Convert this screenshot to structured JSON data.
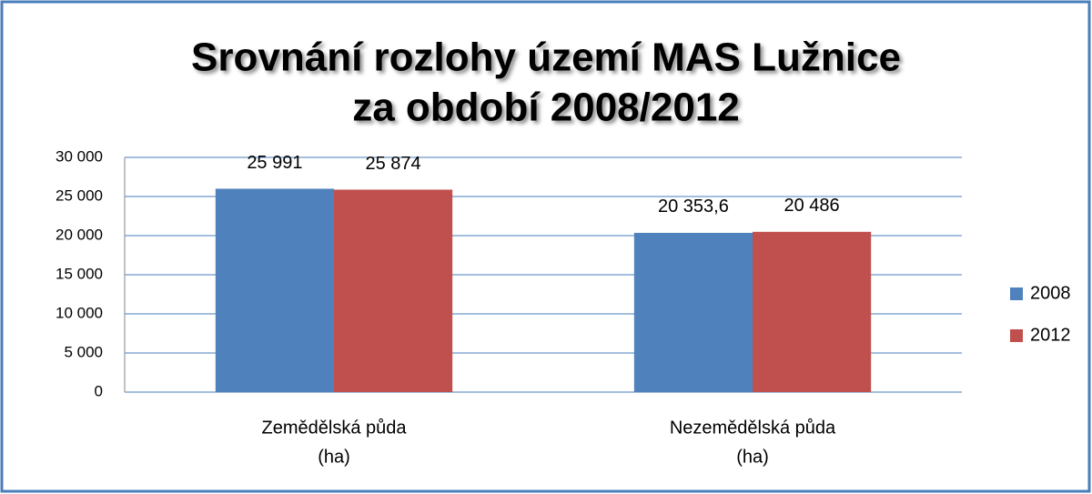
{
  "chart_data": {
    "type": "bar",
    "title": [
      "Srovnání rozlohy území MAS Lužnice",
      "za období 2008/2012"
    ],
    "categories": [
      [
        "Zemědělská půda",
        "(ha)"
      ],
      [
        "Nezemědělská půda",
        "(ha)"
      ]
    ],
    "series": [
      {
        "name": "2008",
        "color": "#4f81bd",
        "values": [
          25991,
          20353.6
        ],
        "value_labels": [
          "25 991",
          "20 353,6"
        ]
      },
      {
        "name": "2012",
        "color": "#c0504d",
        "values": [
          25874,
          20486
        ],
        "value_labels": [
          "25 874",
          "20 486"
        ]
      }
    ],
    "ylim": [
      0,
      30000
    ],
    "yticks": [
      0,
      {
        "value": 5000,
        "label": "5 000"
      },
      {
        "value": 10000,
        "label": "10 000"
      },
      {
        "value": 15000,
        "label": "15 000"
      },
      {
        "value": 20000,
        "label": "20 000"
      },
      {
        "value": 25000,
        "label": "25 000"
      },
      {
        "value": 30000,
        "label": "30 000"
      }
    ],
    "grid": true,
    "legend": "right"
  }
}
